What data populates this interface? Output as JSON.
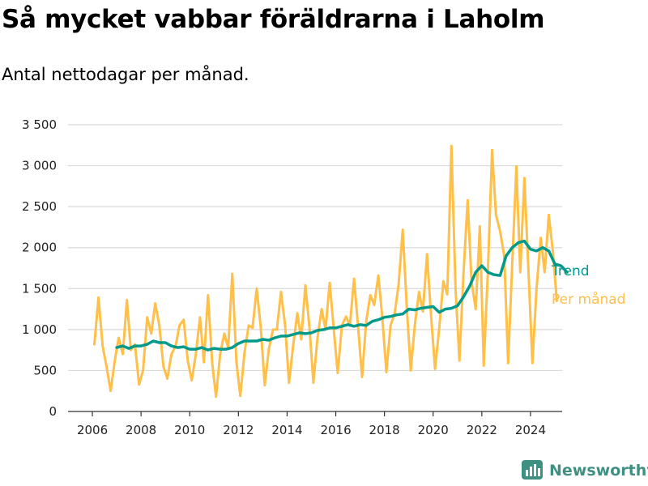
{
  "title": "Så mycket vabbar föräldrarna i Laholm",
  "subtitle": "Antal nettodagar per månad.",
  "brand": {
    "name": "Newsworthy",
    "icon": "bar-chart-logo-icon"
  },
  "colors": {
    "monthly": "#FFC04A",
    "trend": "#00998A",
    "grid": "#d9d9d9",
    "brand": "#3f8f83"
  },
  "chart_data": {
    "type": "line",
    "x_axis": {
      "ticks": [
        "2006",
        "2008",
        "2010",
        "2012",
        "2014",
        "2016",
        "2018",
        "2020",
        "2022",
        "2024"
      ],
      "range": [
        2005,
        2025.3
      ]
    },
    "y_axis": {
      "ticks": [
        "0",
        "500",
        "1 000",
        "1 500",
        "2 000",
        "2 500",
        "3 000",
        "3 500"
      ],
      "tick_values": [
        0,
        500,
        1000,
        1500,
        2000,
        2500,
        3000,
        3500
      ],
      "range": [
        0,
        3500
      ]
    },
    "grid": "horizontal",
    "series": [
      {
        "name": "Per månad",
        "color": "#FFC04A",
        "points": [
          [
            2006.08,
            820
          ],
          [
            2006.25,
            1390
          ],
          [
            2006.42,
            800
          ],
          [
            2006.58,
            550
          ],
          [
            2006.75,
            250
          ],
          [
            2006.92,
            620
          ],
          [
            2007.08,
            900
          ],
          [
            2007.25,
            700
          ],
          [
            2007.42,
            1360
          ],
          [
            2007.58,
            750
          ],
          [
            2007.75,
            820
          ],
          [
            2007.92,
            330
          ],
          [
            2008.08,
            500
          ],
          [
            2008.25,
            1150
          ],
          [
            2008.42,
            950
          ],
          [
            2008.58,
            1320
          ],
          [
            2008.75,
            1050
          ],
          [
            2008.92,
            550
          ],
          [
            2009.08,
            400
          ],
          [
            2009.25,
            700
          ],
          [
            2009.42,
            800
          ],
          [
            2009.58,
            1050
          ],
          [
            2009.75,
            1120
          ],
          [
            2009.92,
            620
          ],
          [
            2010.08,
            380
          ],
          [
            2010.25,
            700
          ],
          [
            2010.42,
            1150
          ],
          [
            2010.58,
            600
          ],
          [
            2010.75,
            1420
          ],
          [
            2010.92,
            600
          ],
          [
            2011.08,
            180
          ],
          [
            2011.25,
            700
          ],
          [
            2011.42,
            950
          ],
          [
            2011.58,
            780
          ],
          [
            2011.75,
            1680
          ],
          [
            2011.92,
            600
          ],
          [
            2012.08,
            190
          ],
          [
            2012.25,
            720
          ],
          [
            2012.42,
            1050
          ],
          [
            2012.58,
            1020
          ],
          [
            2012.75,
            1500
          ],
          [
            2012.92,
            1020
          ],
          [
            2013.08,
            320
          ],
          [
            2013.25,
            760
          ],
          [
            2013.42,
            1000
          ],
          [
            2013.58,
            1000
          ],
          [
            2013.75,
            1460
          ],
          [
            2013.92,
            1050
          ],
          [
            2014.08,
            350
          ],
          [
            2014.25,
            810
          ],
          [
            2014.42,
            1200
          ],
          [
            2014.58,
            880
          ],
          [
            2014.75,
            1540
          ],
          [
            2014.92,
            1020
          ],
          [
            2015.08,
            350
          ],
          [
            2015.25,
            900
          ],
          [
            2015.42,
            1250
          ],
          [
            2015.58,
            1000
          ],
          [
            2015.75,
            1570
          ],
          [
            2015.92,
            1000
          ],
          [
            2016.08,
            470
          ],
          [
            2016.25,
            1050
          ],
          [
            2016.42,
            1160
          ],
          [
            2016.58,
            1050
          ],
          [
            2016.75,
            1620
          ],
          [
            2016.92,
            1020
          ],
          [
            2017.08,
            420
          ],
          [
            2017.25,
            1100
          ],
          [
            2017.42,
            1420
          ],
          [
            2017.58,
            1300
          ],
          [
            2017.75,
            1660
          ],
          [
            2017.92,
            1120
          ],
          [
            2018.08,
            480
          ],
          [
            2018.25,
            1050
          ],
          [
            2018.42,
            1200
          ],
          [
            2018.58,
            1550
          ],
          [
            2018.75,
            2220
          ],
          [
            2018.92,
            1250
          ],
          [
            2019.08,
            500
          ],
          [
            2019.25,
            1060
          ],
          [
            2019.42,
            1460
          ],
          [
            2019.58,
            1220
          ],
          [
            2019.75,
            1920
          ],
          [
            2019.92,
            1150
          ],
          [
            2020.08,
            520
          ],
          [
            2020.25,
            1020
          ],
          [
            2020.42,
            1590
          ],
          [
            2020.58,
            1430
          ],
          [
            2020.75,
            3240
          ],
          [
            2020.92,
            1500
          ],
          [
            2021.08,
            620
          ],
          [
            2021.25,
            1700
          ],
          [
            2021.42,
            2580
          ],
          [
            2021.58,
            1580
          ],
          [
            2021.75,
            1250
          ],
          [
            2021.92,
            2260
          ],
          [
            2022.08,
            560
          ],
          [
            2022.25,
            1700
          ],
          [
            2022.42,
            3190
          ],
          [
            2022.58,
            2400
          ],
          [
            2022.75,
            2200
          ],
          [
            2022.92,
            1900
          ],
          [
            2023.08,
            590
          ],
          [
            2023.25,
            1800
          ],
          [
            2023.42,
            2990
          ],
          [
            2023.58,
            1700
          ],
          [
            2023.75,
            2850
          ],
          [
            2023.92,
            1700
          ],
          [
            2024.08,
            590
          ],
          [
            2024.25,
            1500
          ],
          [
            2024.42,
            2120
          ],
          [
            2024.58,
            1700
          ],
          [
            2024.75,
            2400
          ],
          [
            2024.92,
            1950
          ],
          [
            2025.08,
            1350
          ]
        ]
      },
      {
        "name": "Trend",
        "color": "#00998A",
        "points": [
          [
            2007.0,
            780
          ],
          [
            2007.25,
            800
          ],
          [
            2007.5,
            770
          ],
          [
            2007.75,
            800
          ],
          [
            2008.0,
            800
          ],
          [
            2008.25,
            820
          ],
          [
            2008.5,
            860
          ],
          [
            2008.75,
            840
          ],
          [
            2009.0,
            840
          ],
          [
            2009.25,
            800
          ],
          [
            2009.5,
            780
          ],
          [
            2009.75,
            790
          ],
          [
            2010.0,
            760
          ],
          [
            2010.25,
            760
          ],
          [
            2010.5,
            780
          ],
          [
            2010.75,
            750
          ],
          [
            2011.0,
            770
          ],
          [
            2011.25,
            760
          ],
          [
            2011.5,
            760
          ],
          [
            2011.75,
            780
          ],
          [
            2012.0,
            830
          ],
          [
            2012.25,
            860
          ],
          [
            2012.5,
            860
          ],
          [
            2012.75,
            860
          ],
          [
            2013.0,
            880
          ],
          [
            2013.25,
            870
          ],
          [
            2013.5,
            900
          ],
          [
            2013.75,
            920
          ],
          [
            2014.0,
            920
          ],
          [
            2014.25,
            940
          ],
          [
            2014.5,
            960
          ],
          [
            2014.75,
            950
          ],
          [
            2015.0,
            960
          ],
          [
            2015.25,
            990
          ],
          [
            2015.5,
            1000
          ],
          [
            2015.75,
            1020
          ],
          [
            2016.0,
            1020
          ],
          [
            2016.25,
            1040
          ],
          [
            2016.5,
            1060
          ],
          [
            2016.75,
            1040
          ],
          [
            2017.0,
            1060
          ],
          [
            2017.25,
            1050
          ],
          [
            2017.5,
            1100
          ],
          [
            2017.75,
            1120
          ],
          [
            2018.0,
            1150
          ],
          [
            2018.25,
            1160
          ],
          [
            2018.5,
            1180
          ],
          [
            2018.75,
            1190
          ],
          [
            2019.0,
            1250
          ],
          [
            2019.25,
            1240
          ],
          [
            2019.5,
            1260
          ],
          [
            2019.75,
            1270
          ],
          [
            2020.0,
            1280
          ],
          [
            2020.25,
            1210
          ],
          [
            2020.5,
            1250
          ],
          [
            2020.75,
            1260
          ],
          [
            2021.0,
            1290
          ],
          [
            2021.25,
            1400
          ],
          [
            2021.5,
            1530
          ],
          [
            2021.75,
            1700
          ],
          [
            2022.0,
            1780
          ],
          [
            2022.25,
            1700
          ],
          [
            2022.5,
            1670
          ],
          [
            2022.75,
            1660
          ],
          [
            2023.0,
            1900
          ],
          [
            2023.25,
            2000
          ],
          [
            2023.5,
            2060
          ],
          [
            2023.75,
            2080
          ],
          [
            2024.0,
            1980
          ],
          [
            2024.25,
            1960
          ],
          [
            2024.5,
            2000
          ],
          [
            2024.75,
            1960
          ],
          [
            2025.0,
            1800
          ],
          [
            2025.25,
            1780
          ],
          [
            2025.5,
            1700
          ]
        ]
      }
    ],
    "series_labels": [
      "Trend",
      "Per månad"
    ]
  }
}
